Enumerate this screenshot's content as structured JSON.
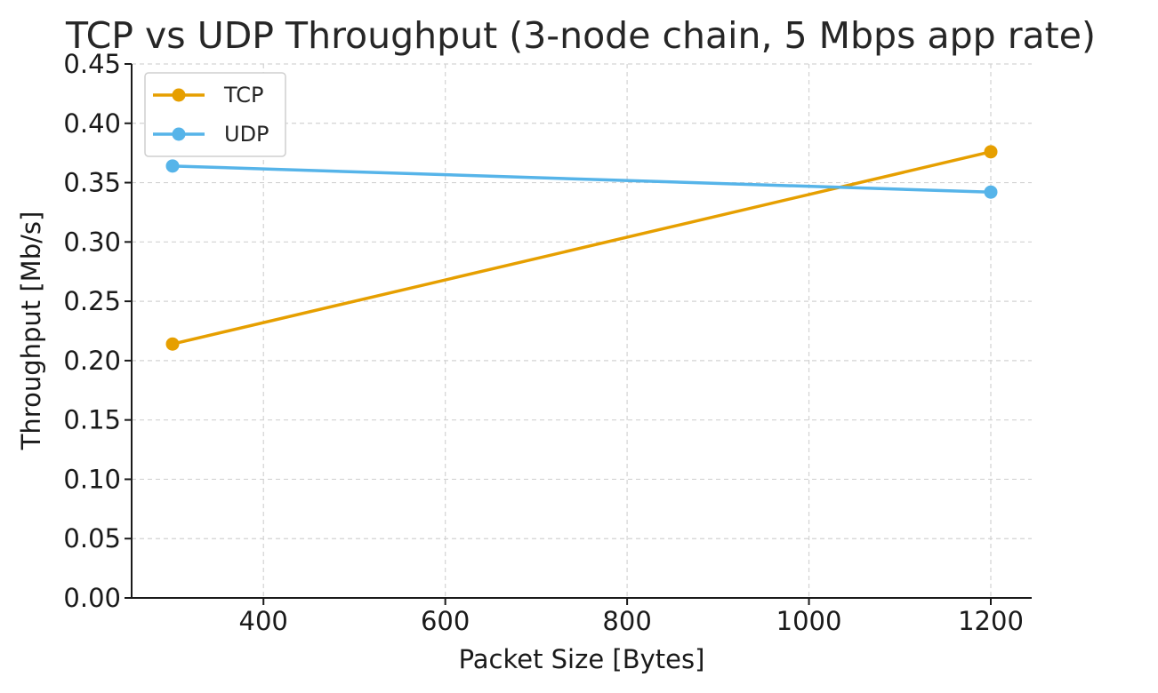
{
  "chart_data": {
    "type": "line",
    "title": "TCP vs UDP Throughput (3-node chain, 5 Mbps app rate)",
    "xlabel": "Packet Size [Bytes]",
    "ylabel": "Throughput [Mb/s]",
    "xlim": [
      255,
      1245
    ],
    "ylim": [
      0,
      0.45
    ],
    "xticks": [
      400,
      600,
      800,
      1000,
      1200
    ],
    "xtick_labels": [
      "400",
      "600",
      "800",
      "1000",
      "1200"
    ],
    "yticks": [
      0.0,
      0.05,
      0.1,
      0.15,
      0.2,
      0.25,
      0.3,
      0.35,
      0.4,
      0.45
    ],
    "ytick_labels": [
      "0.00",
      "0.05",
      "0.10",
      "0.15",
      "0.20",
      "0.25",
      "0.30",
      "0.35",
      "0.40",
      "0.45"
    ],
    "grid": true,
    "legend_position": "top-left",
    "x": [
      300,
      1200
    ],
    "series": [
      {
        "name": "TCP",
        "values": [
          0.214,
          0.376
        ],
        "color": "#E69F00",
        "marker": "circle"
      },
      {
        "name": "UDP",
        "values": [
          0.364,
          0.342
        ],
        "color": "#56B4E9",
        "marker": "circle"
      }
    ]
  }
}
